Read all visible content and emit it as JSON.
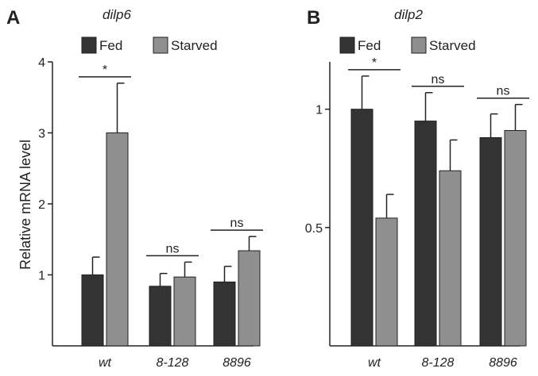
{
  "colors": {
    "fed": "#333333",
    "starved": "#8f8f8f",
    "axis": "#222222"
  },
  "chart_data": [
    {
      "type": "bar",
      "panel": "A",
      "title": "dilp6",
      "ylabel": "Relative mRNA level",
      "ylim": [
        0,
        4
      ],
      "yticks": [
        "1",
        "2",
        "3",
        "4"
      ],
      "categories": [
        "wt",
        "8-128",
        "8896"
      ],
      "series": [
        {
          "name": "Fed",
          "values": [
            1.0,
            0.84,
            0.9
          ],
          "errors": [
            0.25,
            0.18,
            0.22
          ]
        },
        {
          "name": "Starved",
          "values": [
            3.0,
            0.97,
            1.34
          ],
          "errors": [
            0.7,
            0.21,
            0.2
          ]
        }
      ],
      "significance": [
        "*",
        "ns",
        "ns"
      ],
      "legend": "top"
    },
    {
      "type": "bar",
      "panel": "B",
      "title": "dilp2",
      "ylabel": "",
      "ylim": [
        0,
        1.2
      ],
      "yticks": [
        "0.5",
        "1"
      ],
      "categories": [
        "wt",
        "8-128",
        "8896"
      ],
      "series": [
        {
          "name": "Fed",
          "values": [
            1.0,
            0.95,
            0.88
          ],
          "errors": [
            0.14,
            0.12,
            0.1
          ]
        },
        {
          "name": "Starved",
          "values": [
            0.54,
            0.74,
            0.91
          ],
          "errors": [
            0.1,
            0.13,
            0.11
          ]
        }
      ],
      "significance": [
        "*",
        "ns",
        "ns"
      ],
      "legend": "top"
    }
  ]
}
